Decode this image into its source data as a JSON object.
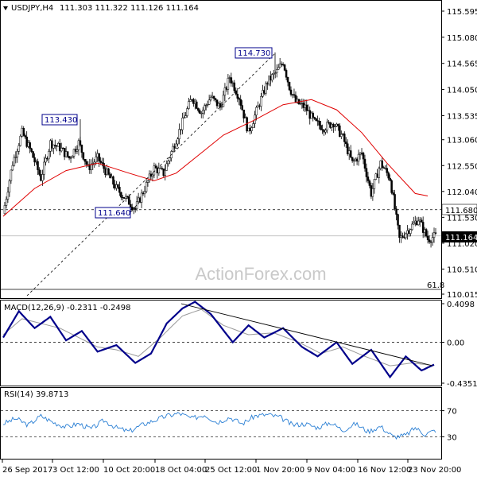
{
  "window": {
    "symbol_label": "USDJPY,H4",
    "ohlc_label": "111.303 111.322 111.126 111.164",
    "watermark": "ActionForex.com"
  },
  "chart_data": [
    {
      "type": "candlestick",
      "title": "USDJPY,H4",
      "y_axis_ticks": [
        "115.595",
        "115.080",
        "114.565",
        "114.050",
        "113.535",
        "113.060",
        "112.550",
        "112.040",
        "111.530",
        "111.020",
        "110.510",
        "110.015"
      ],
      "ylim": [
        110.015,
        115.595
      ],
      "x_tick_labels": [
        "26 Sep 2017",
        "3 Oct 12:00",
        "10 Oct 20:00",
        "18 Oct 04:00",
        "25 Oct 12:00",
        "1 Nov 20:00",
        "9 Nov 04:00",
        "16 Nov 12:00",
        "23 Nov 20:00"
      ],
      "current_price": "111.164",
      "horizontal_level": "111.680",
      "fib_label": "61.8",
      "annotations": [
        {
          "label": "113.430",
          "price": 113.43
        },
        {
          "label": "114.730",
          "price": 114.73
        },
        {
          "label": "111.640",
          "price": 111.64
        }
      ],
      "close_path": [
        [
          0,
          111.6
        ],
        [
          6,
          112.6
        ],
        [
          12,
          113.2
        ],
        [
          18,
          112.8
        ],
        [
          24,
          112.3
        ],
        [
          30,
          113.0
        ],
        [
          36,
          112.9
        ],
        [
          42,
          112.7
        ],
        [
          48,
          113.0
        ],
        [
          54,
          112.5
        ],
        [
          60,
          112.7
        ],
        [
          66,
          112.4
        ],
        [
          72,
          112.1
        ],
        [
          78,
          111.9
        ],
        [
          84,
          111.7
        ],
        [
          90,
          112.1
        ],
        [
          96,
          112.5
        ],
        [
          102,
          112.4
        ],
        [
          108,
          112.9
        ],
        [
          114,
          113.4
        ],
        [
          120,
          113.9
        ],
        [
          126,
          113.6
        ],
        [
          132,
          113.9
        ],
        [
          138,
          113.7
        ],
        [
          144,
          114.3
        ],
        [
          150,
          113.9
        ],
        [
          156,
          113.2
        ],
        [
          162,
          113.7
        ],
        [
          168,
          114.2
        ],
        [
          174,
          114.4
        ],
        [
          178,
          114.6
        ],
        [
          182,
          114.1
        ],
        [
          186,
          113.8
        ],
        [
          192,
          113.7
        ],
        [
          198,
          113.4
        ],
        [
          204,
          113.3
        ],
        [
          210,
          113.4
        ],
        [
          216,
          113.1
        ],
        [
          222,
          112.6
        ],
        [
          228,
          112.8
        ],
        [
          234,
          112.0
        ],
        [
          240,
          112.6
        ],
        [
          246,
          112.3
        ],
        [
          252,
          111.1
        ],
        [
          258,
          111.3
        ],
        [
          264,
          111.5
        ],
        [
          270,
          111.1
        ],
        [
          275,
          111.16
        ]
      ],
      "ma_path": [
        [
          0,
          111.55
        ],
        [
          20,
          112.1
        ],
        [
          40,
          112.45
        ],
        [
          60,
          112.6
        ],
        [
          80,
          112.4
        ],
        [
          96,
          112.25
        ],
        [
          110,
          112.4
        ],
        [
          124,
          112.75
        ],
        [
          140,
          113.15
        ],
        [
          160,
          113.45
        ],
        [
          178,
          113.75
        ],
        [
          196,
          113.85
        ],
        [
          212,
          113.65
        ],
        [
          228,
          113.2
        ],
        [
          244,
          112.6
        ],
        [
          262,
          112.0
        ],
        [
          270,
          111.95
        ]
      ]
    },
    {
      "type": "line",
      "title": "MACD(12,26,9) -0.2311 -0.2498",
      "indicator": "MACD(12,26,9)",
      "values_label": [
        "-0.2311",
        "-0.2498"
      ],
      "y_axis_ticks": [
        "0.4098",
        "0.00",
        "-0.4351"
      ],
      "ylim": [
        -0.4351,
        0.4098
      ],
      "macd_path": [
        [
          0,
          0.05
        ],
        [
          10,
          0.33
        ],
        [
          20,
          0.15
        ],
        [
          30,
          0.27
        ],
        [
          40,
          0.02
        ],
        [
          50,
          0.12
        ],
        [
          60,
          -0.1
        ],
        [
          72,
          -0.03
        ],
        [
          84,
          -0.22
        ],
        [
          94,
          -0.12
        ],
        [
          104,
          0.2
        ],
        [
          114,
          0.36
        ],
        [
          122,
          0.43
        ],
        [
          132,
          0.3
        ],
        [
          146,
          0.0
        ],
        [
          156,
          0.18
        ],
        [
          166,
          0.05
        ],
        [
          178,
          0.15
        ],
        [
          190,
          -0.05
        ],
        [
          200,
          -0.15
        ],
        [
          212,
          0.0
        ],
        [
          222,
          -0.23
        ],
        [
          234,
          -0.08
        ],
        [
          246,
          -0.37
        ],
        [
          256,
          -0.15
        ],
        [
          266,
          -0.3
        ],
        [
          275,
          -0.23
        ]
      ],
      "signal_path": [
        [
          0,
          0.08
        ],
        [
          12,
          0.25
        ],
        [
          24,
          0.2
        ],
        [
          36,
          0.15
        ],
        [
          48,
          0.05
        ],
        [
          60,
          -0.05
        ],
        [
          72,
          -0.08
        ],
        [
          86,
          -0.15
        ],
        [
          100,
          0.05
        ],
        [
          114,
          0.28
        ],
        [
          126,
          0.35
        ],
        [
          140,
          0.18
        ],
        [
          156,
          0.08
        ],
        [
          172,
          0.1
        ],
        [
          188,
          0.0
        ],
        [
          202,
          -0.12
        ],
        [
          216,
          -0.05
        ],
        [
          230,
          -0.15
        ],
        [
          246,
          -0.25
        ],
        [
          260,
          -0.22
        ],
        [
          275,
          -0.25
        ]
      ]
    },
    {
      "type": "line",
      "title": "RSI(14) 39.8713",
      "indicator": "RSI(14)",
      "value_label": "39.8713",
      "y_axis_ticks": [
        "70",
        "30"
      ],
      "ylim": [
        0,
        100
      ],
      "rsi_path": [
        [
          0,
          50
        ],
        [
          8,
          58
        ],
        [
          16,
          48
        ],
        [
          24,
          62
        ],
        [
          32,
          52
        ],
        [
          40,
          45
        ],
        [
          48,
          50
        ],
        [
          56,
          42
        ],
        [
          64,
          55
        ],
        [
          72,
          44
        ],
        [
          80,
          38
        ],
        [
          88,
          48
        ],
        [
          96,
          55
        ],
        [
          104,
          62
        ],
        [
          112,
          66
        ],
        [
          120,
          58
        ],
        [
          128,
          64
        ],
        [
          136,
          52
        ],
        [
          144,
          60
        ],
        [
          152,
          50
        ],
        [
          160,
          62
        ],
        [
          168,
          64
        ],
        [
          176,
          60
        ],
        [
          184,
          48
        ],
        [
          192,
          50
        ],
        [
          200,
          44
        ],
        [
          208,
          52
        ],
        [
          216,
          40
        ],
        [
          224,
          50
        ],
        [
          232,
          38
        ],
        [
          240,
          46
        ],
        [
          248,
          30
        ],
        [
          256,
          32
        ],
        [
          262,
          44
        ],
        [
          268,
          34
        ],
        [
          275,
          40
        ]
      ]
    }
  ]
}
